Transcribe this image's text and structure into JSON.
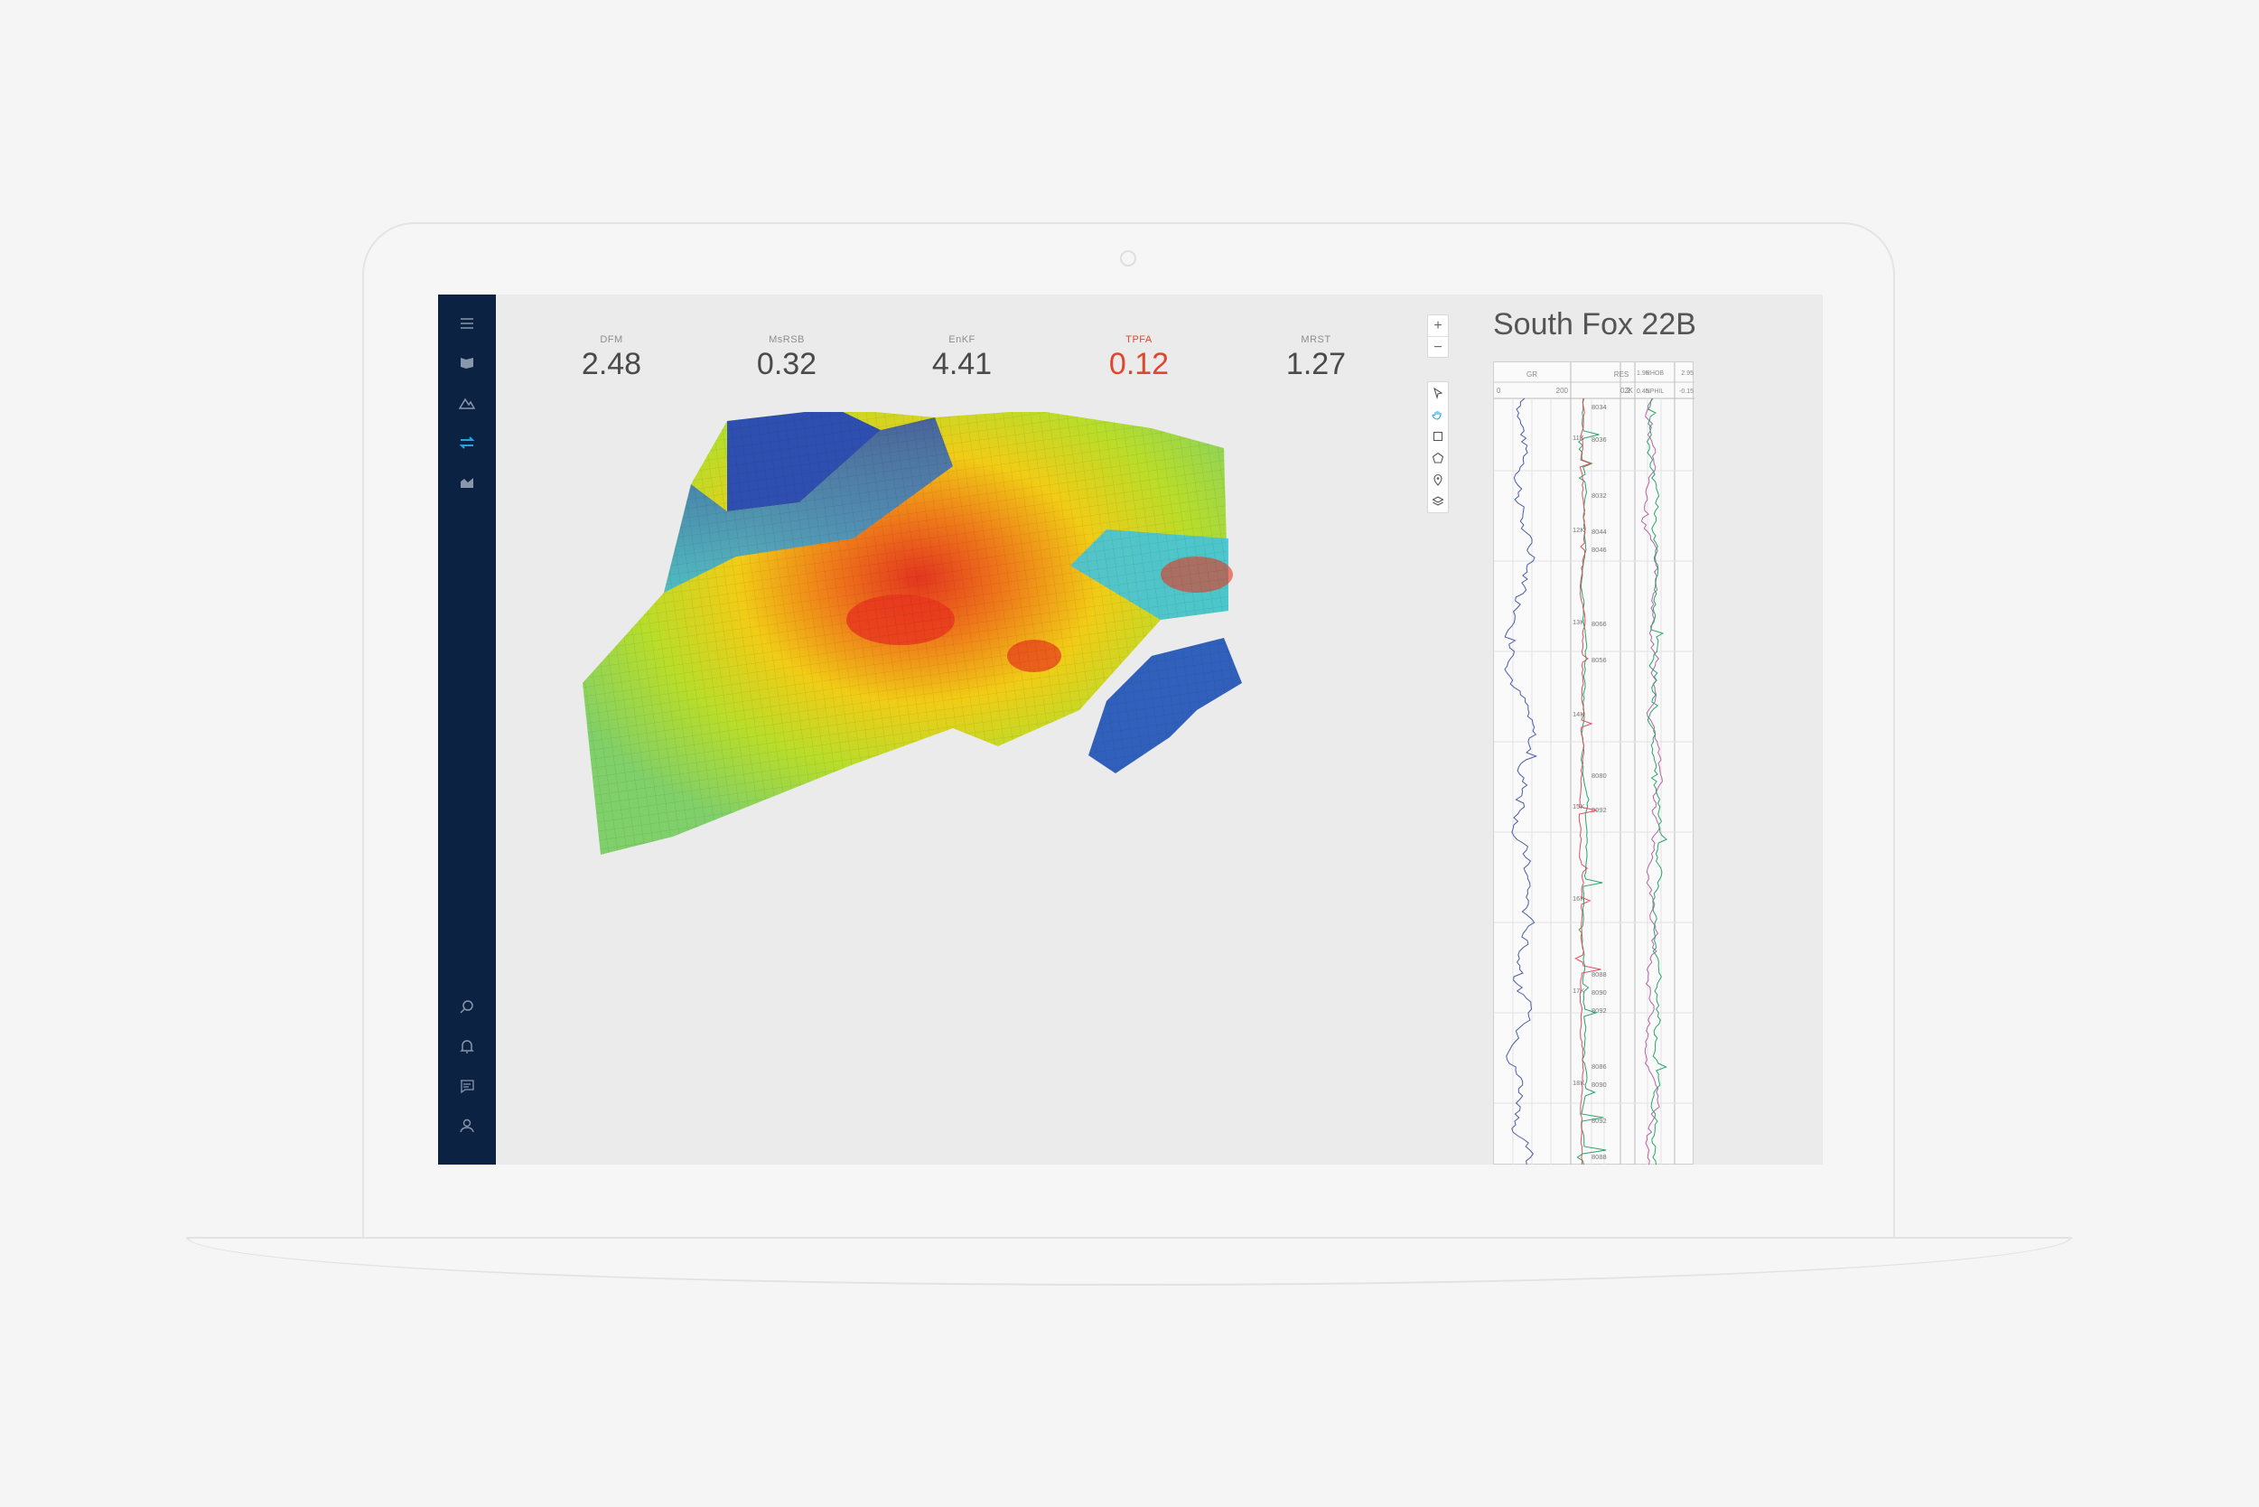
{
  "sidebar": {
    "items": [
      {
        "icon": "menu-icon"
      },
      {
        "icon": "flag-map-icon"
      },
      {
        "icon": "terrain-icon"
      },
      {
        "icon": "transfer-icon",
        "active": true
      },
      {
        "icon": "area-chart-icon"
      }
    ],
    "bottom_items": [
      {
        "icon": "search-icon"
      },
      {
        "icon": "bell-icon"
      },
      {
        "icon": "chat-icon"
      },
      {
        "icon": "user-icon"
      }
    ]
  },
  "metrics": [
    {
      "label": "DFM",
      "value": "2.48"
    },
    {
      "label": "MsRSB",
      "value": "0.32"
    },
    {
      "label": "EnKF",
      "value": "4.41"
    },
    {
      "label": "TPFA",
      "value": "0.12",
      "status": "alert"
    },
    {
      "label": "MRST",
      "value": "1.27"
    }
  ],
  "zoom": {
    "plus": "+",
    "minus": "−"
  },
  "tools": [
    "cursor-icon",
    "hand-icon",
    "select-box-icon",
    "polygon-icon",
    "pin-icon",
    "layers-icon"
  ],
  "well": {
    "title": "South Fox 22B",
    "tracks": {
      "gr": {
        "label": "GR",
        "min": "0",
        "max": "200"
      },
      "res": {
        "label": "RES",
        "min": "0.2",
        "max": "2K"
      },
      "rhob": {
        "min_top": "1.95",
        "label_top": "RHOB",
        "max_top": "2.95",
        "min_bottom": "0.45",
        "label_bottom": "NPHIL",
        "max_bottom": "-0.15"
      }
    },
    "depth_marks": [
      "11K",
      "12K",
      "13K",
      "14K",
      "15K",
      "16K",
      "17K",
      "18K"
    ],
    "depth_labels": [
      "8034",
      "8036",
      "8032",
      "8044",
      "8046",
      "8066",
      "8056",
      "8080",
      "8092",
      "8088",
      "8090",
      "8092",
      "8086",
      "8090",
      "8092",
      "8088"
    ]
  },
  "colors": {
    "sidebar_bg": "#0c2243",
    "accent": "#1ea7e4",
    "alert": "#e0452e",
    "gr_curve": "#4a5ba8",
    "res_curve_1": "#2aa56a",
    "res_curve_2": "#e04f5f",
    "rhob_curve": "#b565a7",
    "nphi_curve": "#2aa56a"
  }
}
